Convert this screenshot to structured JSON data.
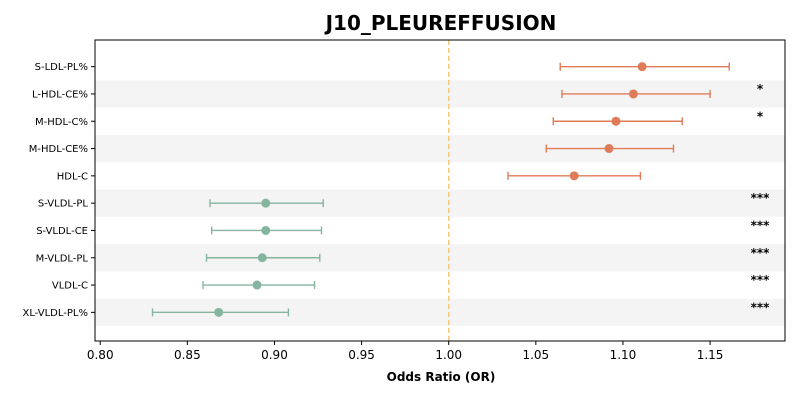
{
  "chart_data": {
    "type": "scatter",
    "title": "J10_PLEUREFFUSION",
    "xlabel": "Odds Ratio (OR)",
    "ylabel": "",
    "xlim": [
      0.797,
      1.193
    ],
    "x_ticks": [
      "0.80",
      "0.85",
      "0.90",
      "0.95",
      "1.00",
      "1.05",
      "1.10",
      "1.15"
    ],
    "reference_line": 1.0,
    "grid": false,
    "row_banding": true,
    "colors": {
      "positive": "#e07b5a",
      "negative": "#86b59f",
      "reference": "#f5c77e",
      "band": "#f4f4f4"
    },
    "rows": [
      {
        "label": "S-LDL-PL%",
        "or": 1.111,
        "lo": 1.064,
        "hi": 1.161,
        "sig": ""
      },
      {
        "label": "L-HDL-CE%",
        "or": 1.106,
        "lo": 1.065,
        "hi": 1.15,
        "sig": "*"
      },
      {
        "label": "M-HDL-C%",
        "or": 1.096,
        "lo": 1.06,
        "hi": 1.134,
        "sig": "*"
      },
      {
        "label": "M-HDL-CE%",
        "or": 1.092,
        "lo": 1.056,
        "hi": 1.129,
        "sig": ""
      },
      {
        "label": "HDL-C",
        "or": 1.072,
        "lo": 1.034,
        "hi": 1.11,
        "sig": ""
      },
      {
        "label": "S-VLDL-PL",
        "or": 0.895,
        "lo": 0.863,
        "hi": 0.928,
        "sig": "***"
      },
      {
        "label": "S-VLDL-CE",
        "or": 0.895,
        "lo": 0.864,
        "hi": 0.927,
        "sig": "***"
      },
      {
        "label": "M-VLDL-PL",
        "or": 0.893,
        "lo": 0.861,
        "hi": 0.926,
        "sig": "***"
      },
      {
        "label": "VLDL-C",
        "or": 0.89,
        "lo": 0.859,
        "hi": 0.923,
        "sig": "***"
      },
      {
        "label": "XL-VLDL-PL%",
        "or": 0.868,
        "lo": 0.83,
        "hi": 0.908,
        "sig": "***"
      }
    ]
  }
}
